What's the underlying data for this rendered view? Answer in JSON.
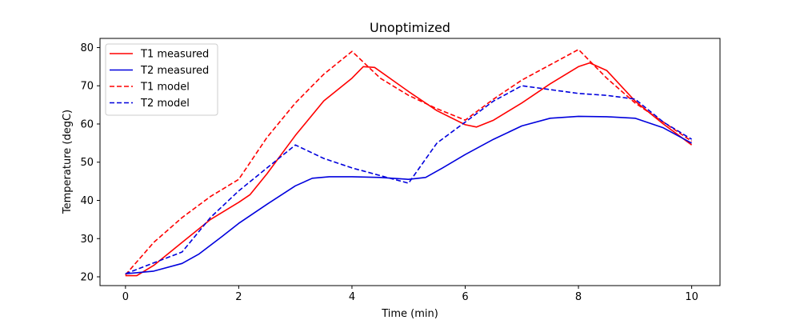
{
  "chart_data": {
    "type": "line",
    "title": "Unoptimized",
    "xlabel": "Time (min)",
    "ylabel": "Temperature (degC)",
    "xlim": [
      -0.45,
      10.5
    ],
    "ylim": [
      17.7,
      82.4
    ],
    "xticks": [
      0,
      2,
      4,
      6,
      8,
      10
    ],
    "yticks": [
      20,
      30,
      40,
      50,
      60,
      70,
      80
    ],
    "grid": false,
    "legend_position": "top-left",
    "series": [
      {
        "name": "T1 measured",
        "color": "#ff0000",
        "dash": "solid",
        "x": [
          0,
          0.2,
          0.5,
          1.0,
          1.5,
          2.0,
          2.2,
          2.5,
          3.0,
          3.5,
          4.0,
          4.2,
          4.4,
          5.0,
          5.5,
          6.0,
          6.2,
          6.5,
          7.0,
          7.5,
          8.0,
          8.2,
          8.5,
          9.0,
          9.5,
          10.0
        ],
        "y": [
          20.3,
          20.3,
          23.0,
          29.0,
          35.0,
          39.5,
          41.5,
          47.0,
          57.0,
          66.0,
          72.0,
          75.0,
          74.8,
          68.5,
          63.5,
          59.8,
          59.2,
          61.0,
          65.5,
          70.5,
          75.0,
          76.0,
          74.0,
          66.0,
          60.0,
          54.5
        ]
      },
      {
        "name": "T2 measured",
        "color": "#0000dd",
        "dash": "solid",
        "x": [
          0,
          0.5,
          1.0,
          1.3,
          1.7,
          2.0,
          2.5,
          3.0,
          3.3,
          3.6,
          4.0,
          4.5,
          5.0,
          5.3,
          5.6,
          6.0,
          6.5,
          7.0,
          7.5,
          8.0,
          8.5,
          9.0,
          9.5,
          10.0
        ],
        "y": [
          20.8,
          21.5,
          23.5,
          26.0,
          30.5,
          34.0,
          39.0,
          43.8,
          45.8,
          46.2,
          46.2,
          46.0,
          45.5,
          46.0,
          48.5,
          52.0,
          56.0,
          59.5,
          61.5,
          62.0,
          61.9,
          61.5,
          59.0,
          55.0
        ]
      },
      {
        "name": "T1 model",
        "color": "#ff0000",
        "dash": "dashed",
        "x": [
          0,
          0.5,
          1.0,
          1.5,
          2.0,
          2.5,
          3.0,
          3.5,
          4.0,
          4.5,
          5.0,
          5.5,
          6.0,
          6.5,
          7.0,
          7.5,
          8.0,
          8.5,
          9.0,
          9.5,
          10.0
        ],
        "y": [
          20.5,
          29.0,
          35.5,
          41.0,
          45.5,
          56.5,
          65.5,
          73.0,
          79.0,
          72.0,
          67.5,
          64.0,
          61.0,
          66.5,
          71.5,
          75.5,
          79.5,
          72.0,
          65.5,
          60.5,
          55.5
        ]
      },
      {
        "name": "T2 model",
        "color": "#0000dd",
        "dash": "dashed",
        "x": [
          0,
          1.0,
          1.5,
          2.0,
          2.5,
          3.0,
          3.5,
          4.0,
          4.5,
          5.0,
          5.5,
          6.0,
          6.5,
          7.0,
          7.5,
          8.0,
          8.5,
          9.0,
          9.5,
          10.0
        ],
        "y": [
          20.8,
          26.5,
          35.5,
          42.5,
          48.5,
          54.5,
          51.0,
          48.5,
          46.5,
          44.5,
          55.0,
          60.5,
          66.0,
          70.0,
          69.0,
          68.0,
          67.5,
          66.5,
          60.5,
          56.0
        ]
      }
    ]
  }
}
